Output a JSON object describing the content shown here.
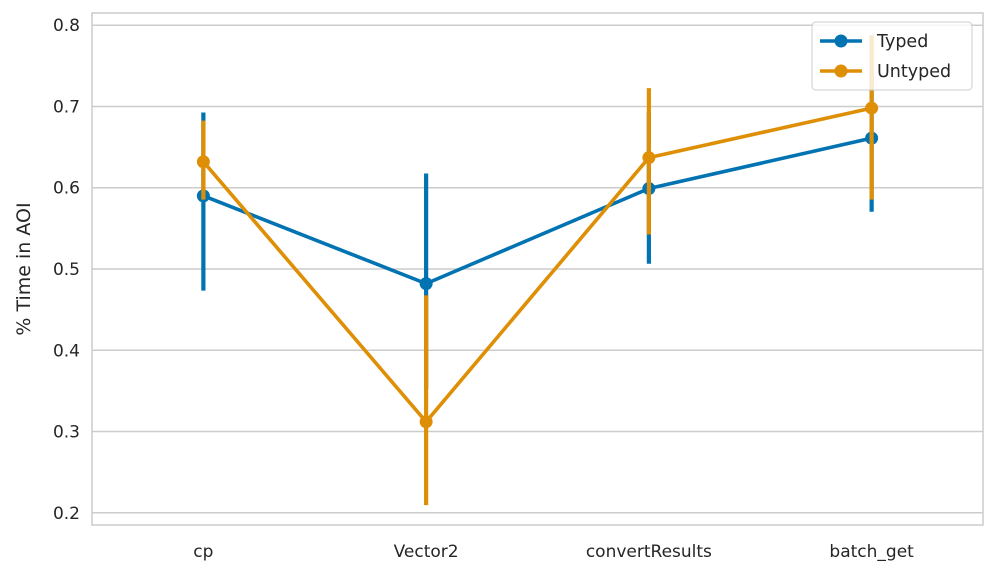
{
  "chart_data": {
    "type": "line",
    "categories": [
      "cp",
      "Vector2",
      "convertResults",
      "batch_get"
    ],
    "xlabel": "",
    "ylabel": "% Time in AOI",
    "ylim": [
      0.185,
      0.815
    ],
    "yticks": [
      0.2,
      0.3,
      0.4,
      0.5,
      0.6,
      0.7,
      0.8
    ],
    "ytick_labels": [
      "0.2",
      "0.3",
      "0.4",
      "0.5",
      "0.6",
      "0.7",
      "0.8"
    ],
    "grid": "horizontal",
    "legend_position": "top-right",
    "series": [
      {
        "name": "Typed",
        "color": "#0173b2",
        "values": [
          0.59,
          0.482,
          0.599,
          0.661
        ],
        "error_low": [
          0.476,
          0.355,
          0.509,
          0.573
        ],
        "error_high": [
          0.69,
          0.615,
          0.69,
          0.743
        ]
      },
      {
        "name": "Untyped",
        "color": "#de8f05",
        "values": [
          0.632,
          0.312,
          0.637,
          0.698
        ],
        "error_low": [
          0.588,
          0.212,
          0.545,
          0.588
        ],
        "error_high": [
          0.68,
          0.465,
          0.72,
          0.785
        ]
      }
    ]
  }
}
